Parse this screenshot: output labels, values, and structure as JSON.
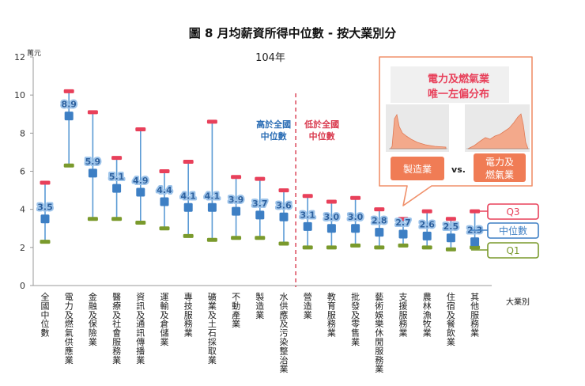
{
  "chart_data": {
    "type": "box-range",
    "title": "圖  8  月均薪資所得中位數 - 按大業別分",
    "subtitle": "104年",
    "y_unit_label": "萬元",
    "x_axis_label": "大業別",
    "ylim": [
      0,
      12
    ],
    "y_ticks": [
      "0",
      "2",
      "4",
      "6",
      "8",
      "10",
      "12"
    ],
    "categories": [
      "全國中位數",
      "電力及燃氣供應業",
      "金融及保險業",
      "醫療及社會服務業",
      "資訊及通訊傳播業",
      "運輸及倉儲業",
      "專技服務業",
      "礦業及土石採取業",
      "不動產業",
      "製造業",
      "水供應及污染整治業",
      "營造業",
      "教育服務業",
      "批發及零售業",
      "藝術娛樂休閒服務業",
      "支援服務業",
      "農林漁牧業",
      "住宿及餐飲業",
      "其他服務業"
    ],
    "median": [
      3.5,
      8.9,
      5.9,
      5.1,
      4.9,
      4.4,
      4.1,
      4.1,
      3.9,
      3.7,
      3.6,
      3.1,
      3.0,
      3.0,
      2.8,
      2.7,
      2.6,
      2.5,
      2.3
    ],
    "median_labels": [
      "3.5",
      "8.9",
      "5.9",
      "5.1",
      "4.9",
      "4.4",
      "4.1",
      "4.1",
      "3.9",
      "3.7",
      "3.6",
      "3.1",
      "3.0",
      "3.0",
      "2.8",
      "2.7",
      "2.6",
      "2.5",
      "2.3"
    ],
    "q3": [
      5.4,
      10.2,
      9.1,
      6.7,
      8.2,
      6.0,
      6.5,
      8.6,
      5.7,
      5.6,
      5.0,
      4.7,
      4.4,
      4.6,
      4.0,
      3.5,
      3.9,
      3.5,
      3.9
    ],
    "q1": [
      2.3,
      6.3,
      3.5,
      3.5,
      3.3,
      3.0,
      2.6,
      2.4,
      2.5,
      2.5,
      2.2,
      2.0,
      2.0,
      2.1,
      2.0,
      2.1,
      2.0,
      1.9,
      2.0
    ],
    "legend": {
      "q3": "Q3",
      "median": "中位數",
      "q1": "Q1"
    },
    "split_after_index": 10,
    "annotation_high": [
      "高於全國",
      "中位數"
    ],
    "annotation_low": [
      "低於全國",
      "中位數"
    ],
    "colors": {
      "q3": "#e8405a",
      "median": "#3d7fc4",
      "q1": "#7a9a2c",
      "whisker": "#5b9bd5",
      "high_text": "#2c6eb5",
      "low_text": "#d93a4e",
      "split_line": "#d93a4e",
      "axis": "#999999",
      "callout_border": "#f0906a",
      "callout_title": "#e8405a",
      "callout_button": "#f07c55"
    },
    "callout": {
      "title_line1": "電力及燃氣業",
      "title_line2": "唯一左偏分布",
      "left_button": "製造業",
      "vs_text": "vs.",
      "right_button_line1": "電力及",
      "right_button_line2": "燃氣業"
    }
  }
}
